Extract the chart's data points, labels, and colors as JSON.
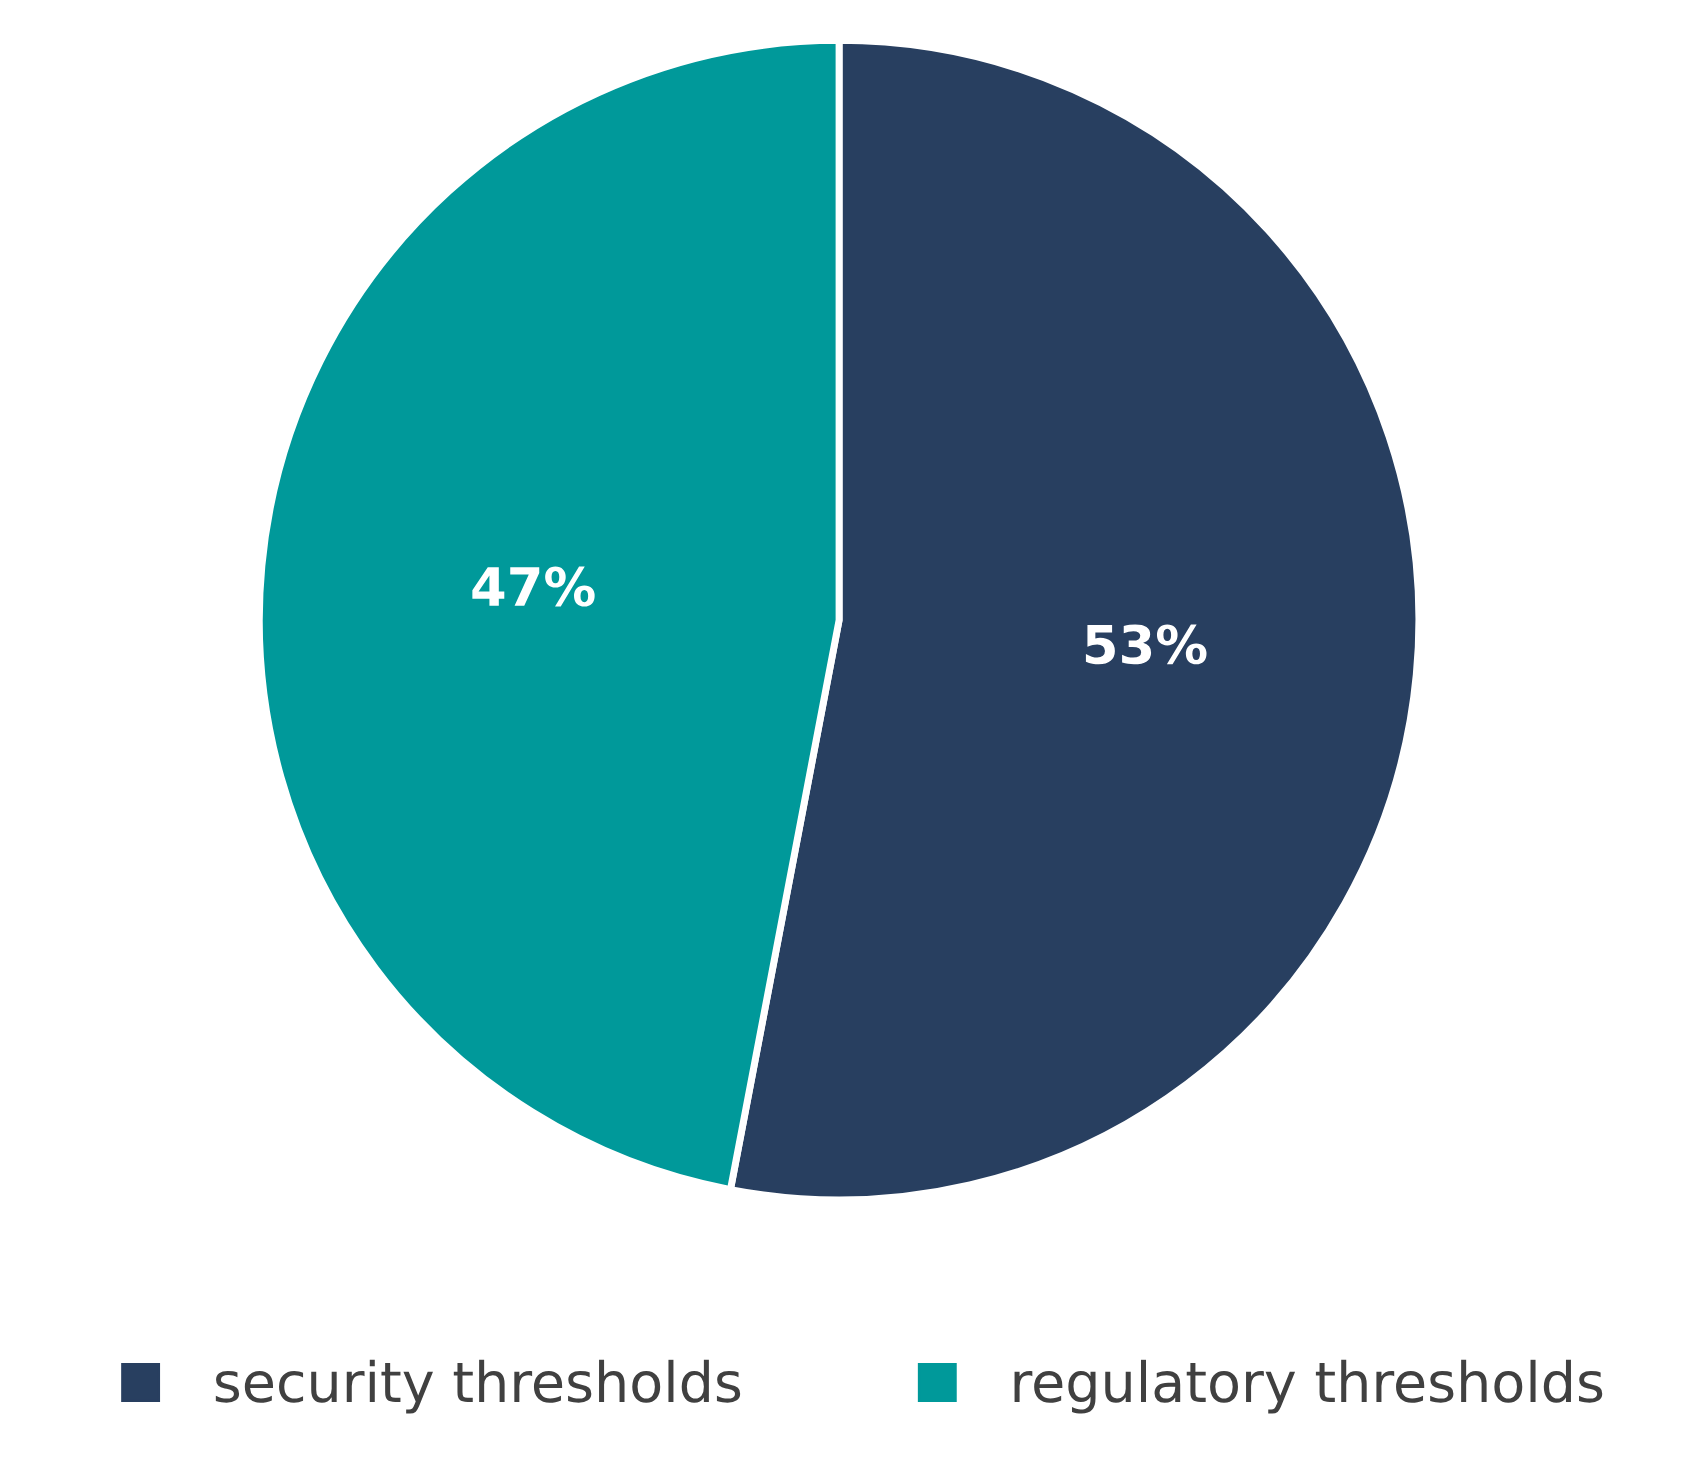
{
  "chart_data": {
    "type": "pie",
    "categories": [
      "security thresholds",
      "regulatory thresholds"
    ],
    "values": [
      53,
      47
    ],
    "colors": [
      "#283f60",
      "#00999a"
    ],
    "value_labels": [
      "53%",
      "47%"
    ],
    "legend": "bottom"
  }
}
